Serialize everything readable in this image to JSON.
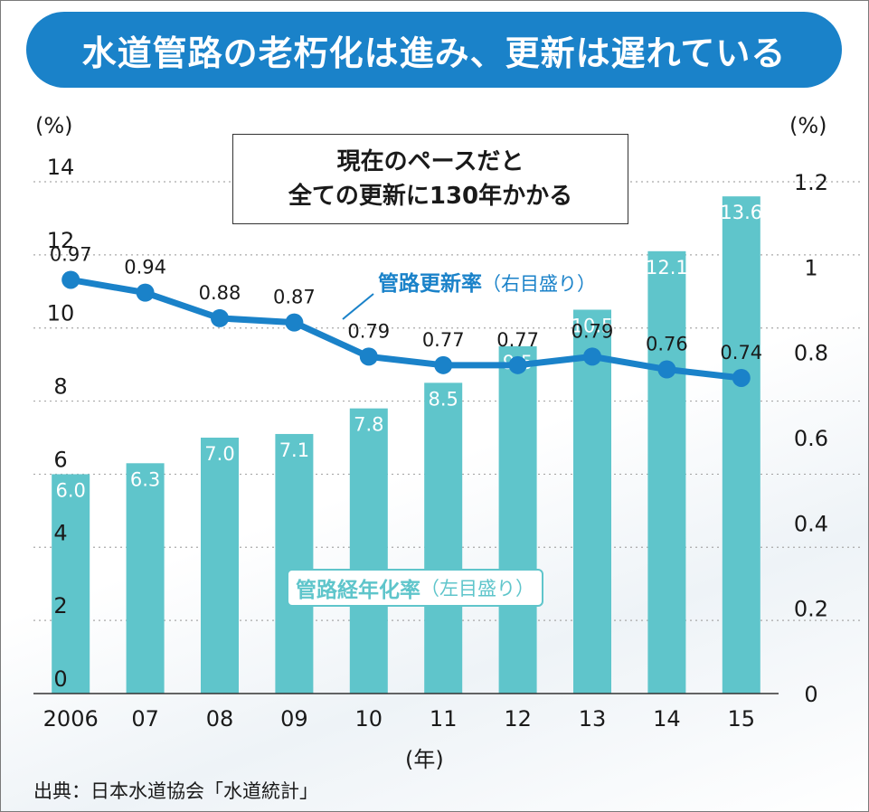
{
  "title": "水道管路の老朽化は進み、更新は遅れている",
  "callout": {
    "line1": "現在のペースだと",
    "line2": "全ての更新に130年かかる"
  },
  "units": {
    "left": "(%)",
    "right": "(%)",
    "x": "(年)"
  },
  "source": "出典：日本水道協会「水道統計」",
  "colors": {
    "title_bg": "#1a82c9",
    "bar": "#5fc5cb",
    "line": "#1a82c9"
  },
  "chart_data": {
    "type": "bar+line",
    "categories": [
      "2006",
      "07",
      "08",
      "09",
      "10",
      "11",
      "12",
      "13",
      "14",
      "15"
    ],
    "y_left": {
      "lim": [
        0,
        14
      ],
      "ticks": [
        "0",
        "2",
        "4",
        "6",
        "8",
        "10",
        "12",
        "14"
      ]
    },
    "y_right": {
      "lim": [
        0,
        1.2
      ],
      "ticks": [
        "0",
        "0.2",
        "0.4",
        "0.6",
        "0.8",
        "1",
        "1.2"
      ]
    },
    "grid": true,
    "series": [
      {
        "name": "管路経年化率",
        "name_suffix": "（左目盛り）",
        "type": "bar",
        "axis": "left",
        "values": [
          6.0,
          6.3,
          7.0,
          7.1,
          7.8,
          8.5,
          9.5,
          10.5,
          12.1,
          13.6
        ],
        "labels": [
          "6.0",
          "6.3",
          "7.0",
          "7.1",
          "7.8",
          "8.5",
          "9.5",
          "10.5",
          "12.1",
          "13.6"
        ]
      },
      {
        "name": "管路更新率",
        "name_suffix": "（右目盛り）",
        "type": "line",
        "axis": "right",
        "values": [
          0.97,
          0.94,
          0.88,
          0.87,
          0.79,
          0.77,
          0.77,
          0.79,
          0.76,
          0.74
        ],
        "labels": [
          "0.97",
          "0.94",
          "0.88",
          "0.87",
          "0.79",
          "0.77",
          "0.77",
          "0.79",
          "0.76",
          "0.74"
        ]
      }
    ]
  }
}
